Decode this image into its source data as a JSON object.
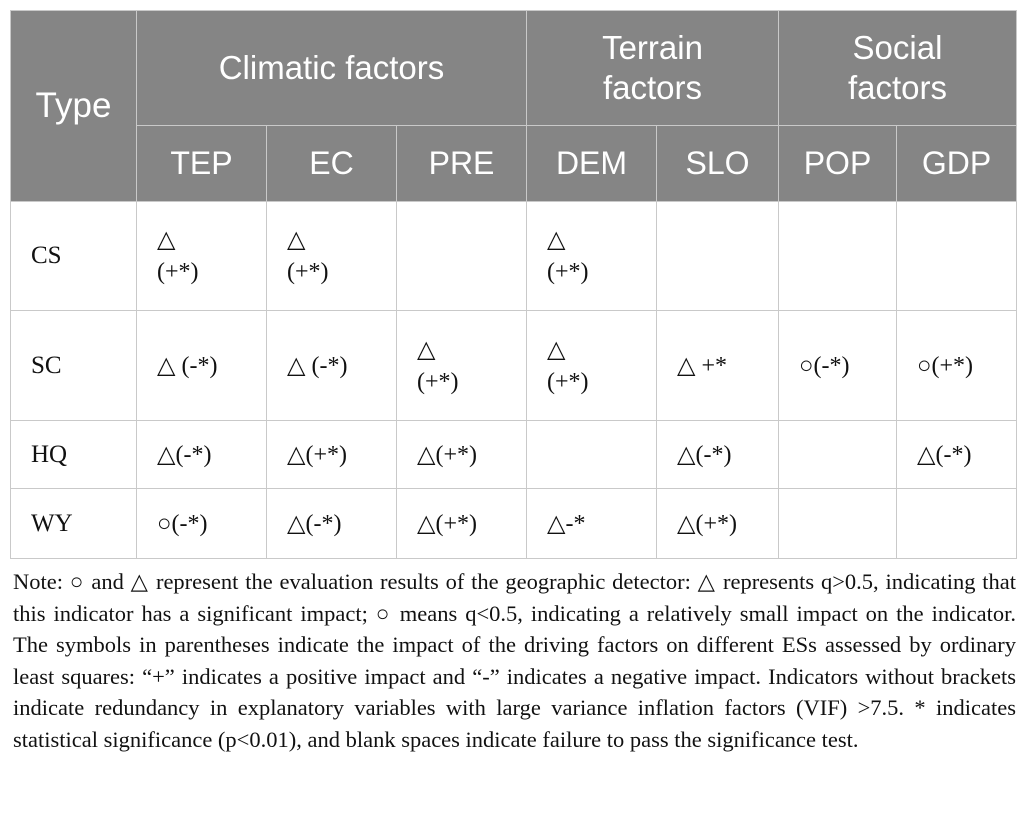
{
  "table": {
    "type_header": "Type",
    "groups": [
      "Climatic factors",
      "Terrain factors",
      "Social factors"
    ],
    "columns": [
      "TEP",
      "EC",
      "PRE",
      "DEM",
      "SLO",
      "POP",
      "GDP"
    ],
    "rows": [
      {
        "label": "CS",
        "cells": [
          "△\n(+*)",
          "△\n(+*)",
          "",
          "△\n(+*)",
          "",
          "",
          ""
        ]
      },
      {
        "label": "SC",
        "cells": [
          "△ (-*)",
          "△ (-*)",
          "△\n(+*)",
          "△\n(+*)",
          "△ +*",
          "○(-*)",
          "○(+*)"
        ]
      },
      {
        "label": "HQ",
        "cells": [
          "△(-*)",
          "△(+*)",
          "△(+*)",
          "",
          "△(-*)",
          "",
          "△(-*)"
        ]
      },
      {
        "label": "WY",
        "cells": [
          "○(-*)",
          "△(-*)",
          "△(+*)",
          "△-*",
          "△(+*)",
          "",
          ""
        ]
      }
    ]
  },
  "note": "Note: ○ and △ represent the evaluation results of the geographic detector: △ represents q>0.5, indicating that this indicator has a significant impact; ○ means q<0.5, indicating a relatively small impact on the indicator. The symbols in parentheses indicate the impact of the driving factors on different ESs assessed by ordinary least squares: “+” indicates a positive impact and “-” indicates a negative impact. Indicators without brackets indicate redundancy in explanatory variables with large variance inflation factors (VIF) >7.5. * indicates statistical significance (p<0.01), and blank spaces indicate failure to pass the significance test."
}
